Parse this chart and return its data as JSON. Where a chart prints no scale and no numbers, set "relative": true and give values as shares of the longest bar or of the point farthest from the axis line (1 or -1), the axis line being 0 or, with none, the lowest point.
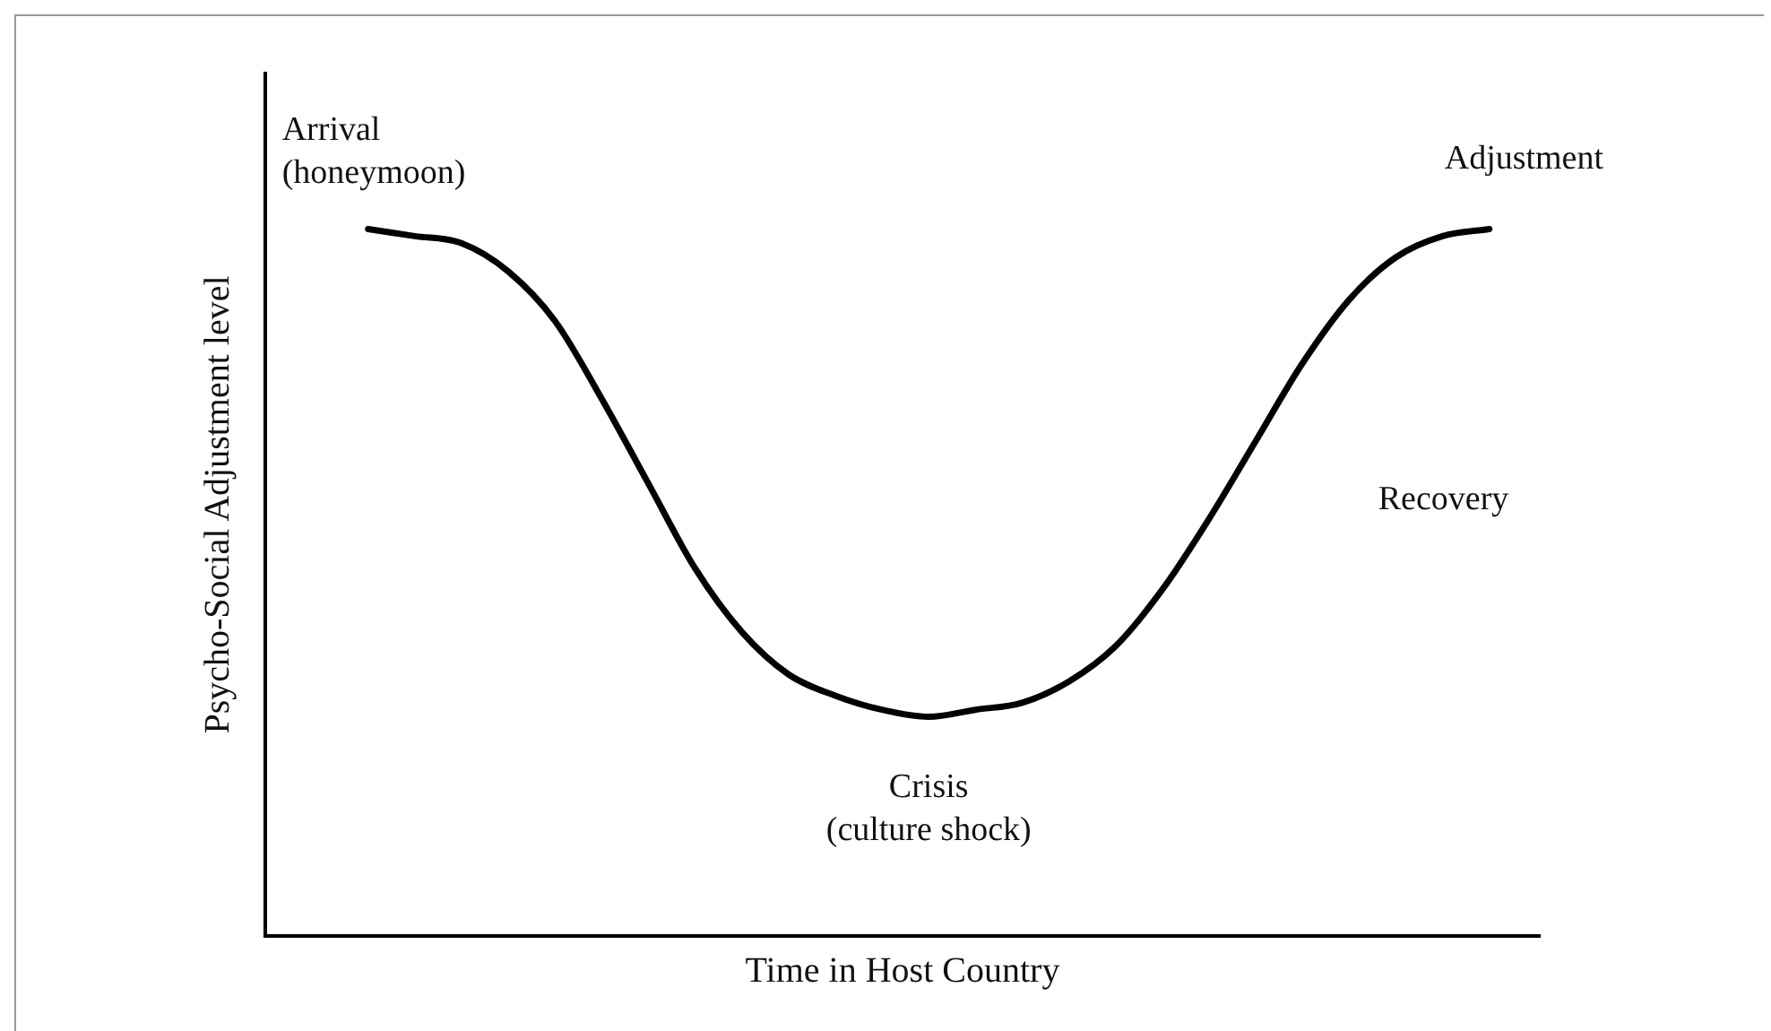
{
  "chart_data": {
    "type": "line",
    "relative": true,
    "xlabel": "Time in Host Country",
    "ylabel": "Psycho-Social Adjustment level",
    "categories": [
      null,
      null,
      null,
      null,
      null,
      null,
      null,
      null,
      null,
      null,
      null,
      null,
      null,
      null,
      null,
      null,
      null,
      null,
      null,
      null,
      null,
      null,
      null,
      null,
      null
    ],
    "series": [
      {
        "color": "#000000",
        "values": [
          1,
          0.99,
          0.98,
          0.94,
          0.87,
          0.76,
          0.64,
          0.52,
          0.43,
          0.37,
          0.34,
          0.32,
          0.31,
          0.32,
          0.33,
          0.36,
          0.41,
          0.49,
          0.59,
          0.7,
          0.81,
          0.9,
          0.96,
          0.99,
          1
        ]
      }
    ],
    "annotations": [
      "Arrival\n(honeymoon)",
      "Crisis\n(culture shock)",
      "Recovery",
      "Adjustment"
    ],
    "marker": "none",
    "line_style": "solid",
    "grid": false,
    "legend": false,
    "tick_labels": false
  }
}
